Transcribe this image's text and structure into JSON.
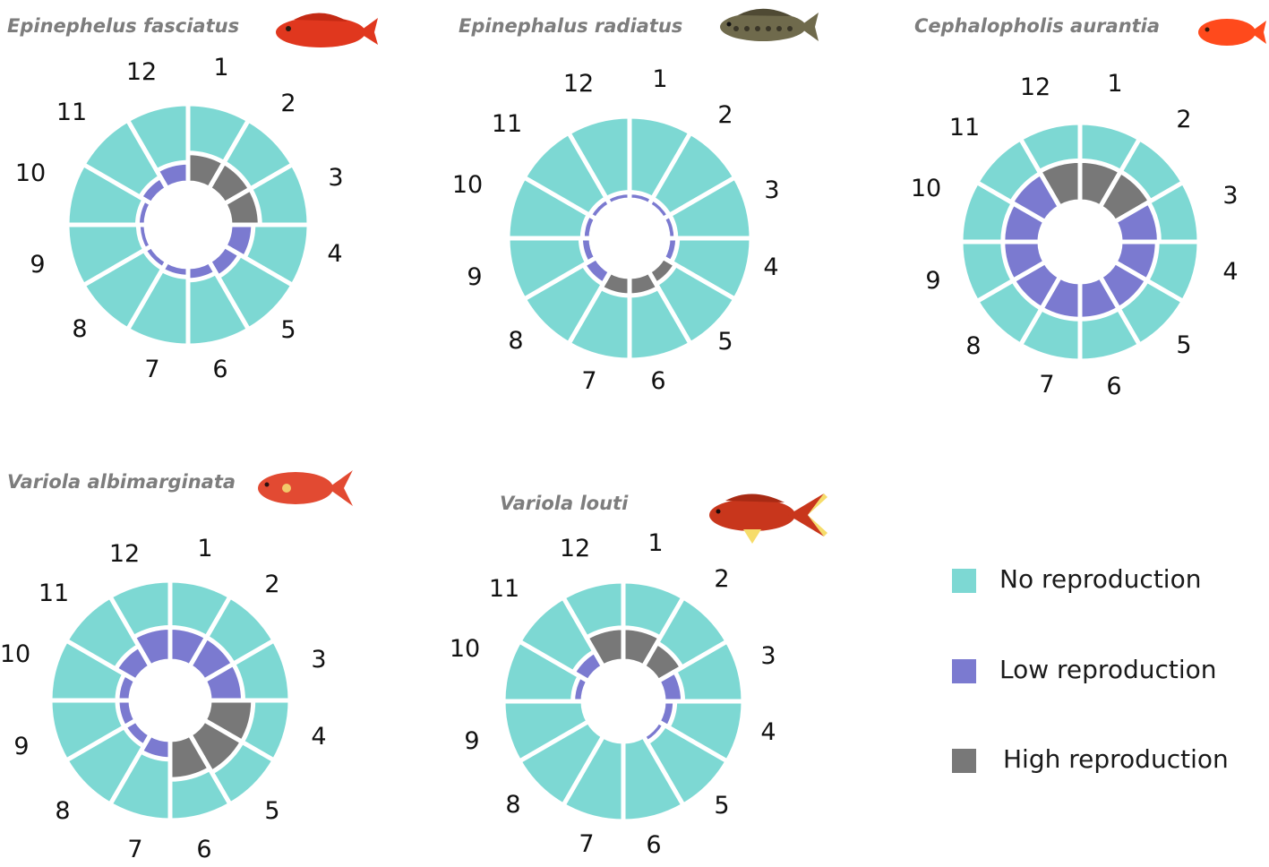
{
  "chart_data": {
    "type": "polar-bar",
    "months": [
      "1",
      "2",
      "3",
      "4",
      "5",
      "6",
      "7",
      "8",
      "9",
      "10",
      "11",
      "12"
    ],
    "colors": {
      "none": "#7dd8d3",
      "low": "#7b7ad0",
      "high": "#787878",
      "fish_1": "#e0371e",
      "fish_2": "#6f6a4c",
      "fish_3": "#ff4a1c",
      "fish_4": "#e24a32",
      "fish_5": "#c8361c",
      "fin_edge": "#f6dc6a"
    },
    "legend": [
      {
        "key": "none",
        "label": "No reproduction"
      },
      {
        "key": "low",
        "label": "Low reproduction"
      },
      {
        "key": "high",
        "label": "High reproduction"
      }
    ],
    "panels": [
      {
        "title": "Epinephelus fasciatus",
        "fish_icon": "red-fish-icon",
        "levels": [
          "high",
          "high",
          "high",
          "low",
          "low",
          "low",
          "low",
          "low",
          "low",
          "low",
          "low",
          "low"
        ],
        "inner_values": [
          0.62,
          0.62,
          0.62,
          0.45,
          0.32,
          0.2,
          0.12,
          0.08,
          0.06,
          0.08,
          0.2,
          0.38
        ]
      },
      {
        "title": "Epinephalus radiatus",
        "fish_icon": "brown-grouper-icon",
        "levels": [
          "low",
          "low",
          "low",
          "low",
          "high",
          "high",
          "high",
          "low",
          "low",
          "low",
          "low",
          "low"
        ],
        "inner_values": [
          0.05,
          0.05,
          0.06,
          0.1,
          0.22,
          0.32,
          0.32,
          0.22,
          0.12,
          0.08,
          0.06,
          0.05
        ]
      },
      {
        "title": "Cephalopholis aurantia",
        "fish_icon": "orange-fish-icon",
        "levels": [
          "high",
          "high",
          "low",
          "low",
          "low",
          "low",
          "low",
          "low",
          "low",
          "low",
          "low",
          "high"
        ],
        "inner_values": [
          0.9,
          0.9,
          0.85,
          0.8,
          0.8,
          0.8,
          0.8,
          0.8,
          0.8,
          0.8,
          0.85,
          0.9
        ]
      },
      {
        "title": "Variola albimarginata",
        "fish_icon": "lyretail-grouper-icon",
        "levels": [
          "low",
          "low",
          "low",
          "high",
          "high",
          "high",
          "low",
          "low",
          "low",
          "low",
          "low",
          "low"
        ],
        "inner_values": [
          0.7,
          0.7,
          0.7,
          0.95,
          0.95,
          0.85,
          0.35,
          0.2,
          0.2,
          0.2,
          0.45,
          0.7
        ]
      },
      {
        "title": "Variola louti",
        "fish_icon": "lunartail-grouper-icon",
        "levels": [
          "high",
          "high",
          "low",
          "low",
          "low",
          "none",
          "none",
          "none",
          "none",
          "low",
          "low",
          "high"
        ],
        "inner_values": [
          0.7,
          0.55,
          0.35,
          0.15,
          0.05,
          0.0,
          0.0,
          0.0,
          0.05,
          0.12,
          0.3,
          0.7
        ]
      }
    ]
  }
}
